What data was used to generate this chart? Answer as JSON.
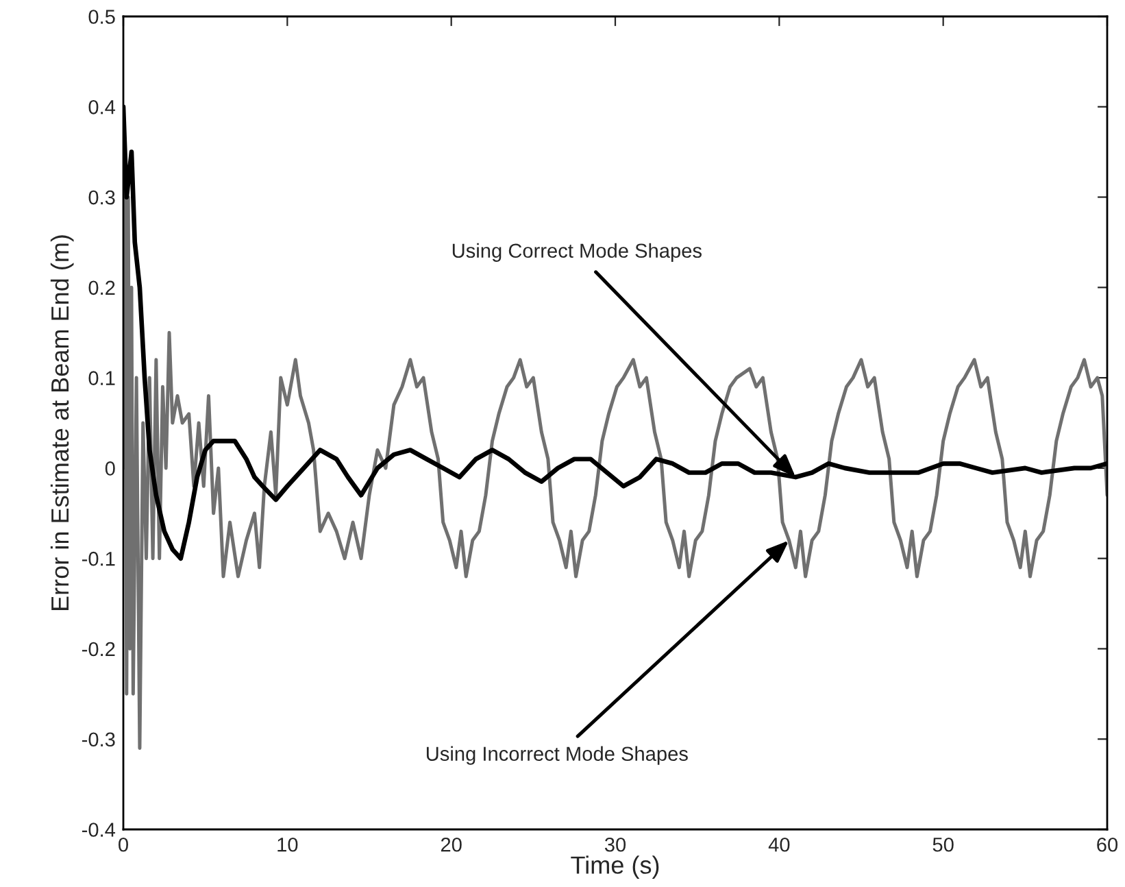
{
  "chart_data": {
    "type": "line",
    "xlabel": "Time (s)",
    "ylabel": "Error in Estimate at Beam End (m)",
    "xlim": [
      0,
      60
    ],
    "ylim": [
      -0.4,
      0.5
    ],
    "xticks": [
      0,
      10,
      20,
      30,
      40,
      50,
      60
    ],
    "yticks": [
      -0.4,
      -0.3,
      -0.2,
      -0.1,
      0,
      0.1,
      0.2,
      0.3,
      0.4,
      0.5
    ],
    "grid": false,
    "line_style": "solid",
    "marker": "none",
    "series": [
      {
        "color": "#707070",
        "x": [
          0,
          0.1,
          0.2,
          0.3,
          0.4,
          0.5,
          0.6,
          0.8,
          1.0,
          1.2,
          1.4,
          1.6,
          1.8,
          2.0,
          2.2,
          2.4,
          2.6,
          2.8,
          3.0,
          3.3,
          3.6,
          4.0,
          4.3,
          4.6,
          4.9,
          5.2,
          5.5,
          5.8,
          6.1,
          6.5,
          7.0,
          7.5,
          8.0,
          8.3,
          8.6,
          9.0,
          9.3,
          9.6,
          10.0,
          10.5,
          10.8,
          11.3,
          11.6,
          12.0,
          12.5,
          13.0,
          13.5,
          14.0,
          14.5,
          15.0,
          15.5,
          16.0,
          16.5,
          17.0,
          17.5,
          17.9,
          18.3,
          18.8,
          19.2,
          19.5,
          19.9,
          20.3,
          20.6,
          20.9,
          21.3,
          21.7,
          22.1,
          22.5,
          22.9,
          23.4,
          23.8,
          24.2,
          24.6,
          25.0,
          25.5,
          25.9,
          26.2,
          26.6,
          27.0,
          27.3,
          27.6,
          28.0,
          28.4,
          28.8,
          29.2,
          29.6,
          30.1,
          30.5,
          31.1,
          31.5,
          31.9,
          32.4,
          32.8,
          33.1,
          33.5,
          33.9,
          34.2,
          34.5,
          34.9,
          35.3,
          35.7,
          36.1,
          36.5,
          37.0,
          37.4,
          38.2,
          38.6,
          39.0,
          39.5,
          39.9,
          40.2,
          40.6,
          41.0,
          41.3,
          41.6,
          42.0,
          42.4,
          42.8,
          43.2,
          43.6,
          44.1,
          44.5,
          45.0,
          45.4,
          45.8,
          46.3,
          46.7,
          47.0,
          47.4,
          47.8,
          48.1,
          48.4,
          48.8,
          49.2,
          49.6,
          50.0,
          50.4,
          50.9,
          51.3,
          51.9,
          52.3,
          52.7,
          53.2,
          53.6,
          53.9,
          54.3,
          54.7,
          55.0,
          55.3,
          55.7,
          56.1,
          56.5,
          56.9,
          57.3,
          57.8,
          58.2,
          58.6,
          59.0,
          59.4,
          59.7,
          60.0
        ],
        "values": [
          0.0,
          0.35,
          -0.25,
          0.3,
          -0.2,
          0.2,
          -0.25,
          0.1,
          -0.31,
          0.05,
          -0.1,
          0.1,
          -0.1,
          0.12,
          -0.1,
          0.09,
          0.0,
          0.15,
          0.05,
          0.08,
          0.05,
          0.06,
          -0.02,
          0.05,
          -0.02,
          0.08,
          -0.05,
          0.0,
          -0.12,
          -0.06,
          -0.12,
          -0.08,
          -0.05,
          -0.11,
          -0.02,
          0.04,
          -0.03,
          0.1,
          0.07,
          0.12,
          0.08,
          0.05,
          0.02,
          -0.07,
          -0.05,
          -0.07,
          -0.1,
          -0.06,
          -0.1,
          -0.03,
          0.02,
          0.0,
          0.07,
          0.09,
          0.12,
          0.09,
          0.1,
          0.04,
          0.01,
          -0.06,
          -0.08,
          -0.11,
          -0.07,
          -0.12,
          -0.08,
          -0.07,
          -0.03,
          0.03,
          0.06,
          0.09,
          0.1,
          0.12,
          0.09,
          0.1,
          0.04,
          0.01,
          -0.06,
          -0.08,
          -0.11,
          -0.07,
          -0.12,
          -0.08,
          -0.07,
          -0.03,
          0.03,
          0.06,
          0.09,
          0.1,
          0.12,
          0.09,
          0.1,
          0.04,
          0.01,
          -0.06,
          -0.08,
          -0.11,
          -0.07,
          -0.12,
          -0.08,
          -0.07,
          -0.03,
          0.03,
          0.06,
          0.09,
          0.1,
          0.11,
          0.09,
          0.1,
          0.04,
          0.01,
          -0.06,
          -0.08,
          -0.11,
          -0.07,
          -0.12,
          -0.08,
          -0.07,
          -0.03,
          0.03,
          0.06,
          0.09,
          0.1,
          0.12,
          0.09,
          0.1,
          0.04,
          0.01,
          -0.06,
          -0.08,
          -0.11,
          -0.07,
          -0.12,
          -0.08,
          -0.07,
          -0.03,
          0.03,
          0.06,
          0.09,
          0.1,
          0.12,
          0.09,
          0.1,
          0.04,
          0.01,
          -0.06,
          -0.08,
          -0.11,
          -0.07,
          -0.12,
          -0.08,
          -0.07,
          -0.03,
          0.03,
          0.06,
          0.09,
          0.1,
          0.12,
          0.09,
          0.1,
          0.08,
          -0.03
        ]
      },
      {
        "color": "#000000",
        "x": [
          0,
          0.2,
          0.5,
          0.7,
          1.0,
          1.3,
          1.6,
          2.0,
          2.5,
          3.0,
          3.5,
          4.0,
          4.5,
          5.0,
          5.5,
          6.0,
          6.8,
          7.5,
          8.0,
          8.5,
          9.3,
          10.0,
          11.0,
          12.0,
          13.0,
          13.7,
          14.5,
          15.5,
          16.5,
          17.5,
          18.5,
          19.5,
          20.5,
          21.5,
          22.5,
          23.5,
          24.5,
          25.5,
          26.5,
          27.5,
          28.5,
          29.5,
          30.5,
          31.5,
          32.5,
          33.5,
          34.5,
          35.5,
          36.5,
          37.5,
          38.5,
          39.5,
          41.0,
          42.0,
          43.0,
          44.0,
          45.5,
          47.0,
          48.5,
          50.0,
          51.0,
          52.0,
          53.0,
          55.0,
          56.0,
          58.0,
          59.0,
          60.0
        ],
        "values": [
          0.4,
          0.3,
          0.35,
          0.25,
          0.2,
          0.1,
          0.02,
          -0.03,
          -0.07,
          -0.09,
          -0.1,
          -0.06,
          -0.01,
          0.02,
          0.03,
          0.03,
          0.03,
          0.01,
          -0.01,
          -0.02,
          -0.035,
          -0.02,
          0.0,
          0.02,
          0.01,
          -0.01,
          -0.03,
          0.0,
          0.015,
          0.02,
          0.01,
          0.0,
          -0.01,
          0.01,
          0.02,
          0.01,
          -0.005,
          -0.015,
          0.0,
          0.01,
          0.01,
          -0.005,
          -0.02,
          -0.01,
          0.01,
          0.005,
          -0.005,
          -0.005,
          0.005,
          0.005,
          -0.005,
          -0.005,
          -0.01,
          -0.005,
          0.005,
          0.0,
          -0.005,
          -0.005,
          -0.005,
          0.005,
          0.005,
          0.0,
          -0.005,
          0.0,
          -0.005,
          0.0,
          0.0,
          0.005
        ]
      }
    ],
    "annotations": [
      {
        "text": "Using Correct Mode Shapes",
        "x": 41.0,
        "y": -0.01
      },
      {
        "text": "Using Incorrect Mode Shapes",
        "x": 40.6,
        "y": -0.08
      }
    ]
  }
}
